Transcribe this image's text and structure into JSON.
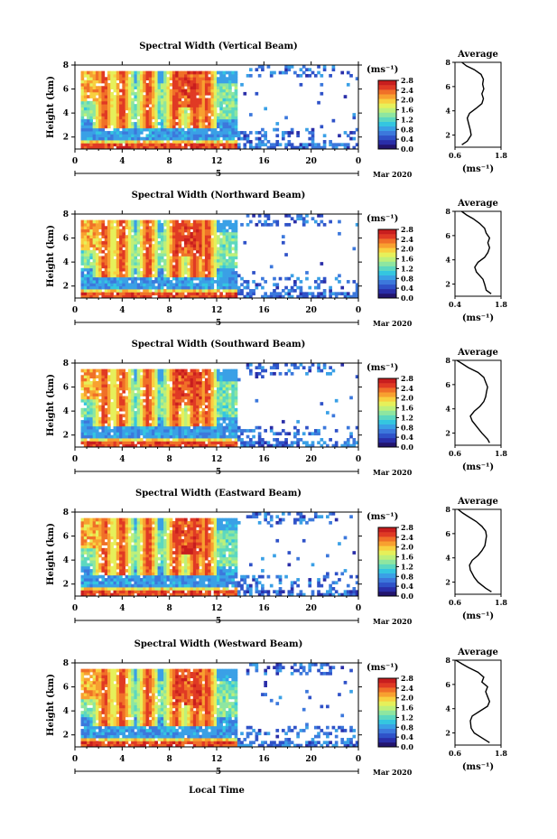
{
  "colors": {
    "colormap": [
      "#23156e",
      "#2a2ea8",
      "#2f52c8",
      "#3c78dc",
      "#3aa0e6",
      "#34c6e0",
      "#5cd8c0",
      "#8ee6a0",
      "#bef07a",
      "#e6f05a",
      "#f8d040",
      "#f8a030",
      "#f07028",
      "#e03a24",
      "#c81e1e"
    ],
    "axis": "#000000",
    "background": "#ffffff"
  },
  "figure": {
    "xlabel": "Local Time",
    "month_label": "Mar 2020",
    "day_label": "5"
  },
  "chart_data": [
    {
      "type": "heatmap",
      "title": "Spectral Width (Vertical Beam)",
      "ylabel": "Height (km)",
      "xlabel": "Local Time",
      "xlim": [
        0,
        24
      ],
      "ylim": [
        1,
        8
      ],
      "x_ticks": [
        "0",
        "4",
        "8",
        "12",
        "16",
        "20",
        "0"
      ],
      "y_ticks": [
        "2",
        "4",
        "6",
        "8"
      ],
      "colorbar": {
        "unit": "(ms⁻¹)",
        "range": [
          0.0,
          2.8
        ],
        "ticks": [
          "0.0",
          "0.4",
          "0.8",
          "1.2",
          "1.6",
          "2.0",
          "2.4",
          "2.8"
        ]
      },
      "average": {
        "title": "Average",
        "xlabel": "(ms⁻¹)",
        "xlim": [
          0.6,
          1.8
        ],
        "x_ticks": [
          "0.6",
          "1.8"
        ],
        "profile": [
          [
            0.78,
            1.2
          ],
          [
            0.92,
            1.5
          ],
          [
            1.02,
            2.0
          ],
          [
            1.0,
            2.4
          ],
          [
            0.95,
            3.0
          ],
          [
            0.92,
            3.4
          ],
          [
            0.98,
            3.8
          ],
          [
            1.15,
            4.2
          ],
          [
            1.3,
            4.6
          ],
          [
            1.34,
            5.0
          ],
          [
            1.3,
            5.4
          ],
          [
            1.35,
            5.8
          ],
          [
            1.32,
            6.2
          ],
          [
            1.34,
            6.6
          ],
          [
            1.28,
            7.0
          ],
          [
            1.1,
            7.4
          ],
          [
            0.9,
            7.7
          ],
          [
            0.78,
            8.0
          ]
        ]
      }
    },
    {
      "type": "heatmap",
      "title": "Spectral Width (Northward Beam)",
      "ylabel": "Height (km)",
      "xlabel": "Local Time",
      "xlim": [
        0,
        24
      ],
      "ylim": [
        1,
        8
      ],
      "x_ticks": [
        "0",
        "4",
        "8",
        "12",
        "16",
        "20",
        "0"
      ],
      "y_ticks": [
        "2",
        "4",
        "6",
        "8"
      ],
      "colorbar": {
        "unit": "(ms⁻¹)",
        "range": [
          0.0,
          2.8
        ],
        "ticks": [
          "0.0",
          "0.4",
          "0.8",
          "1.2",
          "1.6",
          "2.0",
          "2.4",
          "2.8"
        ]
      },
      "average": {
        "title": "Average",
        "xlabel": "(ms⁻¹)",
        "xlim": [
          0.4,
          1.8
        ],
        "x_ticks": [
          "0.4",
          "1.8"
        ],
        "profile": [
          [
            1.5,
            1.2
          ],
          [
            1.35,
            1.5
          ],
          [
            1.3,
            2.0
          ],
          [
            1.25,
            2.4
          ],
          [
            1.05,
            3.0
          ],
          [
            1.0,
            3.4
          ],
          [
            1.1,
            3.8
          ],
          [
            1.3,
            4.2
          ],
          [
            1.4,
            4.6
          ],
          [
            1.45,
            5.0
          ],
          [
            1.4,
            5.4
          ],
          [
            1.45,
            5.8
          ],
          [
            1.35,
            6.2
          ],
          [
            1.3,
            6.6
          ],
          [
            1.15,
            7.0
          ],
          [
            0.95,
            7.4
          ],
          [
            0.75,
            7.7
          ],
          [
            0.6,
            8.0
          ]
        ]
      }
    },
    {
      "type": "heatmap",
      "title": "Spectral Width (Southward Beam)",
      "ylabel": "Height (km)",
      "xlabel": "Local Time",
      "xlim": [
        0,
        24
      ],
      "ylim": [
        1,
        8
      ],
      "x_ticks": [
        "0",
        "4",
        "8",
        "12",
        "16",
        "20",
        "0"
      ],
      "y_ticks": [
        "2",
        "4",
        "6",
        "8"
      ],
      "colorbar": {
        "unit": "(ms⁻¹)",
        "range": [
          0.0,
          2.8
        ],
        "ticks": [
          "0.0",
          "0.4",
          "0.8",
          "1.2",
          "1.6",
          "2.0",
          "2.4",
          "2.8"
        ]
      },
      "average": {
        "title": "Average",
        "xlabel": "(ms⁻¹)",
        "xlim": [
          0.6,
          1.8
        ],
        "x_ticks": [
          "0.6",
          "1.8"
        ],
        "profile": [
          [
            1.5,
            1.2
          ],
          [
            1.45,
            1.5
          ],
          [
            1.3,
            2.0
          ],
          [
            1.2,
            2.4
          ],
          [
            1.05,
            3.0
          ],
          [
            1.0,
            3.4
          ],
          [
            1.1,
            3.8
          ],
          [
            1.25,
            4.2
          ],
          [
            1.35,
            4.6
          ],
          [
            1.4,
            5.0
          ],
          [
            1.42,
            5.4
          ],
          [
            1.45,
            5.8
          ],
          [
            1.4,
            6.2
          ],
          [
            1.35,
            6.6
          ],
          [
            1.2,
            7.0
          ],
          [
            0.95,
            7.4
          ],
          [
            0.8,
            7.7
          ],
          [
            0.65,
            8.0
          ]
        ]
      }
    },
    {
      "type": "heatmap",
      "title": "Spectral Width (Eastward Beam)",
      "ylabel": "Height (km)",
      "xlabel": "Local Time",
      "xlim": [
        0,
        24
      ],
      "ylim": [
        1,
        8
      ],
      "x_ticks": [
        "0",
        "4",
        "8",
        "12",
        "16",
        "20",
        "0"
      ],
      "y_ticks": [
        "2",
        "4",
        "6",
        "8"
      ],
      "colorbar": {
        "unit": "(ms⁻¹)",
        "range": [
          0.0,
          2.8
        ],
        "ticks": [
          "0.0",
          "0.4",
          "0.8",
          "1.2",
          "1.6",
          "2.0",
          "2.4",
          "2.8"
        ]
      },
      "average": {
        "title": "Average",
        "xlabel": "(ms⁻¹)",
        "xlim": [
          0.6,
          1.8
        ],
        "x_ticks": [
          "0.6",
          "1.8"
        ],
        "profile": [
          [
            1.55,
            1.2
          ],
          [
            1.4,
            1.5
          ],
          [
            1.2,
            2.0
          ],
          [
            1.1,
            2.4
          ],
          [
            1.0,
            3.0
          ],
          [
            0.98,
            3.4
          ],
          [
            1.05,
            3.8
          ],
          [
            1.2,
            4.2
          ],
          [
            1.3,
            4.6
          ],
          [
            1.38,
            5.0
          ],
          [
            1.4,
            5.4
          ],
          [
            1.42,
            5.8
          ],
          [
            1.4,
            6.2
          ],
          [
            1.3,
            6.6
          ],
          [
            1.15,
            7.0
          ],
          [
            0.95,
            7.4
          ],
          [
            0.8,
            7.7
          ],
          [
            0.68,
            8.0
          ]
        ]
      }
    },
    {
      "type": "heatmap",
      "title": "Spectral Width (Westward Beam)",
      "ylabel": "Height (km)",
      "xlabel": "Local Time",
      "xlim": [
        0,
        24
      ],
      "ylim": [
        1,
        8
      ],
      "x_ticks": [
        "0",
        "4",
        "8",
        "12",
        "16",
        "20",
        "0"
      ],
      "y_ticks": [
        "2",
        "4",
        "6",
        "8"
      ],
      "colorbar": {
        "unit": "(ms⁻¹)",
        "range": [
          0.0,
          2.8
        ],
        "ticks": [
          "0.0",
          "0.4",
          "0.8",
          "1.2",
          "1.6",
          "2.0",
          "2.4",
          "2.8"
        ]
      },
      "average": {
        "title": "Average",
        "xlabel": "(ms⁻¹)",
        "xlim": [
          0.6,
          1.8
        ],
        "x_ticks": [
          "0.6",
          "1.8"
        ],
        "profile": [
          [
            1.5,
            1.2
          ],
          [
            1.35,
            1.5
          ],
          [
            1.1,
            2.0
          ],
          [
            1.02,
            2.4
          ],
          [
            1.0,
            3.0
          ],
          [
            1.05,
            3.4
          ],
          [
            1.25,
            3.8
          ],
          [
            1.45,
            4.2
          ],
          [
            1.5,
            4.6
          ],
          [
            1.45,
            5.0
          ],
          [
            1.4,
            5.4
          ],
          [
            1.45,
            5.8
          ],
          [
            1.3,
            6.2
          ],
          [
            1.35,
            6.6
          ],
          [
            1.2,
            7.0
          ],
          [
            0.95,
            7.4
          ],
          [
            0.78,
            7.7
          ],
          [
            0.62,
            8.0
          ]
        ]
      }
    }
  ]
}
